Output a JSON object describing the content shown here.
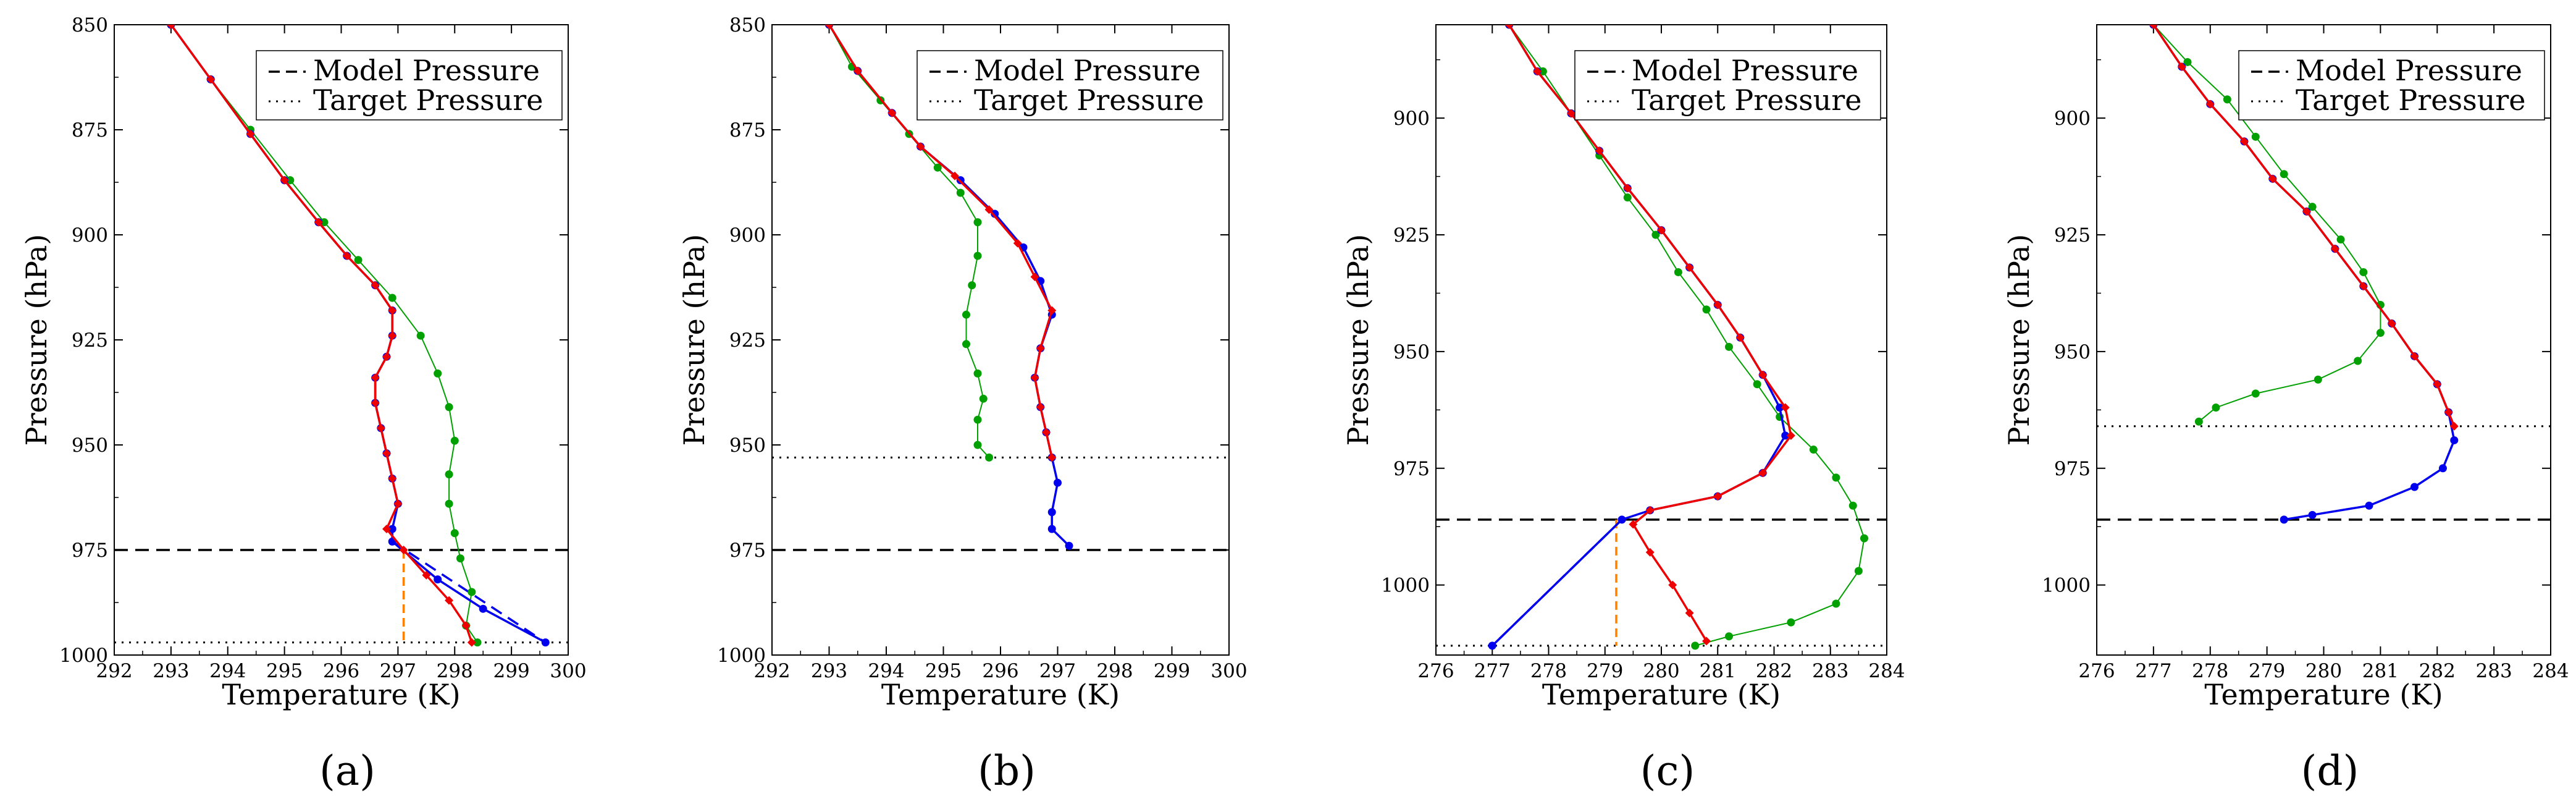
{
  "legend": {
    "model_pressure": "Model Pressure",
    "target_pressure": "Target Pressure"
  },
  "colors": {
    "blue": "#0000ee",
    "red": "#ee0000",
    "green": "#00a000",
    "orange": "#ff8000",
    "black": "#000000"
  },
  "chart_data": [
    {
      "type": "line",
      "panel_label": "(a)",
      "xlabel": "Temperature (K)",
      "ylabel": "Pressure (hPa)",
      "xlim": [
        292,
        300
      ],
      "ylim": [
        1000,
        850
      ],
      "xticks": [
        292,
        293,
        294,
        295,
        296,
        297,
        298,
        299,
        300
      ],
      "yticks": [
        850,
        875,
        900,
        925,
        950,
        975,
        1000
      ],
      "model_pressure": 975,
      "target_pressure": 997,
      "series": [
        {
          "color": "green",
          "points": [
            [
              293.0,
              850
            ],
            [
              293.7,
              863
            ],
            [
              294.4,
              875
            ],
            [
              295.1,
              887
            ],
            [
              295.7,
              897
            ],
            [
              296.3,
              906
            ],
            [
              296.9,
              915
            ],
            [
              297.4,
              924
            ],
            [
              297.7,
              933
            ],
            [
              297.9,
              941
            ],
            [
              298.0,
              949
            ],
            [
              297.9,
              957
            ],
            [
              297.9,
              964
            ],
            [
              298.0,
              971
            ],
            [
              298.1,
              977
            ],
            [
              298.3,
              985
            ],
            [
              298.2,
              993
            ],
            [
              298.4,
              997
            ]
          ]
        },
        {
          "color": "blue",
          "points": [
            [
              293.0,
              850
            ],
            [
              293.7,
              863
            ],
            [
              294.4,
              876
            ],
            [
              295.0,
              887
            ],
            [
              295.6,
              897
            ],
            [
              296.1,
              905
            ],
            [
              296.6,
              912
            ],
            [
              296.9,
              918
            ],
            [
              296.9,
              924
            ],
            [
              296.8,
              929
            ],
            [
              296.6,
              934
            ],
            [
              296.6,
              940
            ],
            [
              296.7,
              946
            ],
            [
              296.8,
              952
            ],
            [
              296.9,
              958
            ],
            [
              297.0,
              964
            ],
            [
              296.9,
              970
            ],
            [
              296.9,
              973
            ],
            [
              297.7,
              982
            ],
            [
              298.5,
              989
            ],
            [
              299.6,
              997
            ]
          ]
        },
        {
          "color": "red",
          "points": [
            [
              293.0,
              850
            ],
            [
              293.7,
              863
            ],
            [
              294.4,
              876
            ],
            [
              295.0,
              887
            ],
            [
              295.6,
              897
            ],
            [
              296.1,
              905
            ],
            [
              296.6,
              912
            ],
            [
              296.9,
              918
            ],
            [
              296.9,
              924
            ],
            [
              296.8,
              929
            ],
            [
              296.6,
              934
            ],
            [
              296.6,
              940
            ],
            [
              296.7,
              946
            ],
            [
              296.8,
              952
            ],
            [
              296.9,
              958
            ],
            [
              297.0,
              964
            ],
            [
              296.8,
              970
            ],
            [
              297.1,
              975
            ],
            [
              297.5,
              981
            ],
            [
              297.9,
              987
            ],
            [
              298.2,
              993
            ],
            [
              298.3,
              997
            ]
          ]
        }
      ],
      "extrapolation": {
        "from": [
          296.9,
          973
        ],
        "to": [
          299.6,
          997
        ]
      },
      "drop_line": {
        "x": 297.1,
        "from": 975,
        "to": 997
      }
    },
    {
      "type": "line",
      "panel_label": "(b)",
      "xlabel": "Temperature (K)",
      "ylabel": "Pressure (hPa)",
      "xlim": [
        292,
        300
      ],
      "ylim": [
        1000,
        850
      ],
      "xticks": [
        292,
        293,
        294,
        295,
        296,
        297,
        298,
        299,
        300
      ],
      "yticks": [
        850,
        875,
        900,
        925,
        950,
        975,
        1000
      ],
      "model_pressure": 975,
      "target_pressure": 953,
      "series": [
        {
          "color": "green",
          "points": [
            [
              293.0,
              850
            ],
            [
              293.4,
              860
            ],
            [
              293.9,
              868
            ],
            [
              294.4,
              876
            ],
            [
              294.9,
              884
            ],
            [
              295.3,
              890
            ],
            [
              295.6,
              897
            ],
            [
              295.6,
              905
            ],
            [
              295.5,
              912
            ],
            [
              295.4,
              919
            ],
            [
              295.4,
              926
            ],
            [
              295.6,
              933
            ],
            [
              295.7,
              939
            ],
            [
              295.6,
              944
            ],
            [
              295.6,
              950
            ],
            [
              295.8,
              953
            ]
          ]
        },
        {
          "color": "blue",
          "points": [
            [
              293.0,
              850
            ],
            [
              293.5,
              861
            ],
            [
              294.1,
              871
            ],
            [
              294.6,
              879
            ],
            [
              295.3,
              887
            ],
            [
              295.9,
              895
            ],
            [
              296.4,
              903
            ],
            [
              296.7,
              911
            ],
            [
              296.9,
              919
            ],
            [
              296.7,
              927
            ],
            [
              296.6,
              934
            ],
            [
              296.7,
              941
            ],
            [
              296.8,
              947
            ],
            [
              296.9,
              953
            ],
            [
              297.0,
              959
            ],
            [
              296.9,
              966
            ],
            [
              296.9,
              970
            ],
            [
              297.2,
              974
            ]
          ]
        },
        {
          "color": "red",
          "points": [
            [
              293.0,
              850
            ],
            [
              293.5,
              861
            ],
            [
              294.1,
              871
            ],
            [
              294.6,
              879
            ],
            [
              295.2,
              886
            ],
            [
              295.8,
              894
            ],
            [
              296.3,
              902
            ],
            [
              296.6,
              910
            ],
            [
              296.9,
              918
            ],
            [
              296.7,
              927
            ],
            [
              296.6,
              934
            ],
            [
              296.7,
              941
            ],
            [
              296.8,
              947
            ],
            [
              296.9,
              953
            ]
          ]
        }
      ]
    },
    {
      "type": "line",
      "panel_label": "(c)",
      "xlabel": "Temperature (K)",
      "ylabel": "Pressure (hPa)",
      "xlim": [
        276,
        284
      ],
      "ylim": [
        1015,
        880
      ],
      "xticks": [
        276,
        277,
        278,
        279,
        280,
        281,
        282,
        283,
        284
      ],
      "yticks": [
        900,
        925,
        950,
        975,
        1000
      ],
      "model_pressure": 986,
      "target_pressure": 1013,
      "series": [
        {
          "color": "green",
          "points": [
            [
              277.3,
              880
            ],
            [
              277.9,
              890
            ],
            [
              278.4,
              899
            ],
            [
              278.9,
              908
            ],
            [
              279.4,
              917
            ],
            [
              279.9,
              925
            ],
            [
              280.3,
              933
            ],
            [
              280.8,
              941
            ],
            [
              281.2,
              949
            ],
            [
              281.7,
              957
            ],
            [
              282.1,
              964
            ],
            [
              282.7,
              971
            ],
            [
              283.1,
              977
            ],
            [
              283.4,
              983
            ],
            [
              283.6,
              990
            ],
            [
              283.5,
              997
            ],
            [
              283.1,
              1004
            ],
            [
              282.3,
              1008
            ],
            [
              281.2,
              1011
            ],
            [
              280.6,
              1013
            ]
          ]
        },
        {
          "color": "blue",
          "points": [
            [
              277.3,
              880
            ],
            [
              277.8,
              890
            ],
            [
              278.4,
              899
            ],
            [
              278.9,
              907
            ],
            [
              279.4,
              915
            ],
            [
              280.0,
              924
            ],
            [
              280.5,
              932
            ],
            [
              281.0,
              940
            ],
            [
              281.4,
              947
            ],
            [
              281.8,
              955
            ],
            [
              282.1,
              962
            ],
            [
              282.2,
              968
            ],
            [
              281.8,
              976
            ],
            [
              281.0,
              981
            ],
            [
              279.8,
              984
            ],
            [
              279.3,
              986
            ],
            [
              277.0,
              1013
            ]
          ]
        },
        {
          "color": "red",
          "points": [
            [
              277.3,
              880
            ],
            [
              277.8,
              890
            ],
            [
              278.4,
              899
            ],
            [
              278.9,
              907
            ],
            [
              279.4,
              915
            ],
            [
              280.0,
              924
            ],
            [
              280.5,
              932
            ],
            [
              281.0,
              940
            ],
            [
              281.4,
              947
            ],
            [
              281.8,
              955
            ],
            [
              282.2,
              962
            ],
            [
              282.3,
              968
            ],
            [
              281.8,
              976
            ],
            [
              281.0,
              981
            ],
            [
              279.8,
              984
            ],
            [
              279.5,
              987
            ],
            [
              279.8,
              993
            ],
            [
              280.2,
              1000
            ],
            [
              280.5,
              1006
            ],
            [
              280.8,
              1012
            ]
          ]
        }
      ],
      "extrapolation": {
        "from": [
          279.3,
          986
        ],
        "to": [
          277.0,
          1013
        ]
      },
      "drop_line": {
        "x": 279.2,
        "from": 986,
        "to": 1013
      }
    },
    {
      "type": "line",
      "panel_label": "(d)",
      "xlabel": "Temperature (K)",
      "ylabel": "Pressure (hPa)",
      "xlim": [
        276,
        284
      ],
      "ylim": [
        1015,
        880
      ],
      "xticks": [
        276,
        277,
        278,
        279,
        280,
        281,
        282,
        283,
        284
      ],
      "yticks": [
        900,
        925,
        950,
        975,
        1000
      ],
      "model_pressure": 986,
      "target_pressure": 966,
      "series": [
        {
          "color": "green",
          "points": [
            [
              277.0,
              880
            ],
            [
              277.6,
              888
            ],
            [
              278.3,
              896
            ],
            [
              278.8,
              904
            ],
            [
              279.3,
              912
            ],
            [
              279.8,
              919
            ],
            [
              280.3,
              926
            ],
            [
              280.7,
              933
            ],
            [
              281.0,
              940
            ],
            [
              281.0,
              946
            ],
            [
              280.6,
              952
            ],
            [
              279.9,
              956
            ],
            [
              278.8,
              959
            ],
            [
              278.1,
              962
            ],
            [
              277.8,
              965
            ]
          ]
        },
        {
          "color": "blue",
          "points": [
            [
              277.0,
              880
            ],
            [
              277.5,
              889
            ],
            [
              278.0,
              897
            ],
            [
              278.6,
              905
            ],
            [
              279.1,
              913
            ],
            [
              279.7,
              920
            ],
            [
              280.2,
              928
            ],
            [
              280.7,
              936
            ],
            [
              281.2,
              944
            ],
            [
              281.6,
              951
            ],
            [
              282.0,
              957
            ],
            [
              282.2,
              963
            ],
            [
              282.3,
              969
            ],
            [
              282.1,
              975
            ],
            [
              281.6,
              979
            ],
            [
              280.8,
              983
            ],
            [
              279.8,
              985
            ],
            [
              279.3,
              986
            ]
          ]
        },
        {
          "color": "red",
          "points": [
            [
              277.0,
              880
            ],
            [
              277.5,
              889
            ],
            [
              278.0,
              897
            ],
            [
              278.6,
              905
            ],
            [
              279.1,
              913
            ],
            [
              279.7,
              920
            ],
            [
              280.2,
              928
            ],
            [
              280.7,
              936
            ],
            [
              281.2,
              944
            ],
            [
              281.6,
              951
            ],
            [
              282.0,
              957
            ],
            [
              282.2,
              963
            ],
            [
              282.3,
              966
            ]
          ]
        }
      ]
    }
  ]
}
